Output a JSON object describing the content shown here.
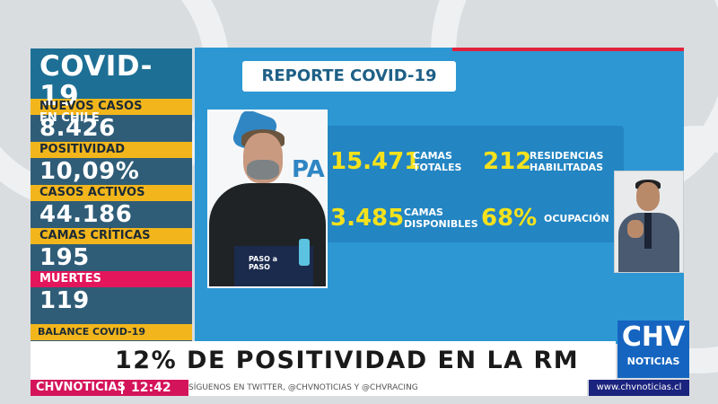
{
  "left_panel": {
    "title": "COVID-19",
    "subtitle": "EN CHILE",
    "stats": [
      {
        "label": "NUEVOS CASOS",
        "value": "8.426"
      },
      {
        "label": "POSITIVIDAD",
        "value": "10,09%"
      },
      {
        "label": "CASOS ACTIVOS",
        "value": "44.186"
      },
      {
        "label": "CAMAS CRÍTICAS",
        "value": "195"
      },
      {
        "label": "MUERTES",
        "value": "119"
      }
    ],
    "balance": "BALANCE COVID-19"
  },
  "report": {
    "title": "REPORTE COVID-19",
    "items": [
      {
        "value": "15.471",
        "label_line1": "CAMAS",
        "label_line2": "TOTALES"
      },
      {
        "value": "212",
        "label_line1": "RESIDENCIAS",
        "label_line2": "HABILITADAS"
      },
      {
        "value": "3.485",
        "label_line1": "CAMAS",
        "label_line2": "DISPONIBLES"
      },
      {
        "value": "68%",
        "label_line1": "OCUPACIÓN",
        "label_line2": ""
      }
    ]
  },
  "video": {
    "backdrop_text": "PASO",
    "podium_line1": "PASO a",
    "podium_line2": "PASO"
  },
  "lower_third": {
    "headline": "12% DE POSITIVIDAD EN LA RM",
    "ticker": "SÍGUENOS EN TWITTER, @CHVNOTICIAS Y @CHVRACING",
    "brand": "CHVNOTICIAS",
    "time": "12:42",
    "logo_main": "CHV",
    "logo_sub": "NOTICIAS",
    "site": "www.chvnoticias.cl"
  },
  "colors": {
    "accent_yellow": "#f2b61c",
    "accent_red": "#e3165b",
    "report_blue": "#2d97d3",
    "brand_pink": "#d4145a"
  }
}
